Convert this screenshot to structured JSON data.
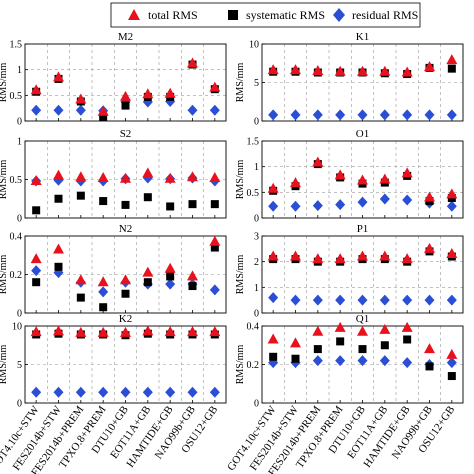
{
  "legend": {
    "items": [
      {
        "label": "total RMS",
        "marker": "triangle",
        "color": "#e8121f"
      },
      {
        "label": "systematic RMS",
        "marker": "square",
        "color": "#000000"
      },
      {
        "label": "residual RMS",
        "marker": "diamond",
        "color": "#2a4fd6"
      }
    ]
  },
  "chart_data": {
    "type": "scatter",
    "categories": [
      "GOT4.10c+STW",
      "FES2014b+STW",
      "FES2014b+PREM",
      "TPXO.8+PREM",
      "DTU10+GB",
      "EOT11A+GB",
      "HAMTIDE+GB",
      "NAO99b+GB",
      "OSU12+GB"
    ],
    "series_names": [
      "total RMS",
      "systematic RMS",
      "residual RMS"
    ],
    "ylabel": "RMS/mm",
    "panels": [
      {
        "title": "M2",
        "ylim": [
          0,
          1.5
        ],
        "yticks": [
          "0",
          "0.5",
          "1",
          "1.5"
        ],
        "total": [
          0.6,
          0.85,
          0.42,
          0.18,
          0.47,
          0.52,
          0.53,
          1.12,
          0.65
        ],
        "systematic": [
          0.57,
          0.82,
          0.38,
          0.08,
          0.3,
          0.47,
          0.47,
          1.1,
          0.62
        ],
        "residual": [
          0.21,
          0.21,
          0.21,
          0.2,
          0.37,
          0.37,
          0.38,
          0.21,
          0.21
        ]
      },
      {
        "title": "K1",
        "ylim": [
          0,
          10
        ],
        "yticks": [
          "0",
          "5",
          "10"
        ],
        "total": [
          6.6,
          6.6,
          6.5,
          6.4,
          6.4,
          6.4,
          6.3,
          7.0,
          7.9
        ],
        "systematic": [
          6.4,
          6.4,
          6.3,
          6.3,
          6.3,
          6.2,
          6.1,
          6.9,
          6.8
        ],
        "residual": [
          0.8,
          0.8,
          0.8,
          0.8,
          0.8,
          0.8,
          0.8,
          0.8,
          0.8
        ]
      },
      {
        "title": "S2",
        "ylim": [
          0,
          1
        ],
        "yticks": [
          "0",
          "0.5",
          "1"
        ],
        "total": [
          0.48,
          0.55,
          0.53,
          0.52,
          0.51,
          0.58,
          0.51,
          0.53,
          0.52
        ],
        "systematic": [
          0.1,
          0.25,
          0.29,
          0.22,
          0.17,
          0.27,
          0.15,
          0.18,
          0.18
        ],
        "residual": [
          0.48,
          0.49,
          0.48,
          0.48,
          0.51,
          0.52,
          0.51,
          0.52,
          0.48
        ]
      },
      {
        "title": "O1",
        "ylim": [
          0,
          1.5
        ],
        "yticks": [
          "0",
          "0.5",
          "1",
          "1.5"
        ],
        "total": [
          0.57,
          0.68,
          1.08,
          0.83,
          0.73,
          0.75,
          0.87,
          0.4,
          0.46
        ],
        "systematic": [
          0.53,
          0.62,
          1.05,
          0.79,
          0.67,
          0.69,
          0.82,
          0.33,
          0.39
        ],
        "residual": [
          0.23,
          0.23,
          0.24,
          0.26,
          0.31,
          0.37,
          0.35,
          0.29,
          0.23
        ]
      },
      {
        "title": "N2",
        "ylim": [
          0,
          0.4
        ],
        "yticks": [
          "0",
          "0.2",
          "0.4"
        ],
        "total": [
          0.28,
          0.33,
          0.17,
          0.16,
          0.17,
          0.21,
          0.23,
          0.19,
          0.37
        ],
        "systematic": [
          0.16,
          0.24,
          0.08,
          0.03,
          0.1,
          0.16,
          0.19,
          0.14,
          0.34
        ],
        "residual": [
          0.22,
          0.21,
          0.16,
          0.11,
          0.16,
          0.15,
          0.15,
          0.15,
          0.12
        ]
      },
      {
        "title": "P1",
        "ylim": [
          0,
          3
        ],
        "yticks": [
          "0",
          "1",
          "2",
          "3"
        ],
        "total": [
          2.2,
          2.2,
          2.1,
          2.1,
          2.2,
          2.2,
          2.1,
          2.5,
          2.3
        ],
        "systematic": [
          2.1,
          2.1,
          2.0,
          2.0,
          2.1,
          2.1,
          2.0,
          2.4,
          2.2
        ],
        "residual": [
          0.6,
          0.5,
          0.5,
          0.5,
          0.5,
          0.5,
          0.5,
          0.5,
          0.5
        ]
      },
      {
        "title": "K2",
        "ylim": [
          0,
          10
        ],
        "yticks": [
          "0",
          "5",
          "10"
        ],
        "total": [
          9.2,
          9.3,
          9.1,
          9.1,
          9.1,
          9.3,
          9.2,
          9.2,
          9.2
        ],
        "systematic": [
          8.9,
          9.0,
          8.9,
          8.9,
          8.8,
          9.0,
          8.9,
          8.9,
          8.9
        ],
        "residual": [
          1.4,
          1.4,
          1.4,
          1.4,
          1.4,
          1.4,
          1.4,
          1.4,
          1.4
        ]
      },
      {
        "title": "Q1",
        "ylim": [
          0,
          0.4
        ],
        "yticks": [
          "0",
          "0.2",
          "0.4"
        ],
        "total": [
          0.33,
          0.31,
          0.37,
          0.39,
          0.37,
          0.38,
          0.39,
          0.28,
          0.25
        ],
        "systematic": [
          0.24,
          0.23,
          0.28,
          0.32,
          0.28,
          0.3,
          0.33,
          0.19,
          0.14
        ],
        "residual": [
          0.21,
          0.21,
          0.22,
          0.22,
          0.22,
          0.22,
          0.21,
          0.2,
          0.21
        ]
      }
    ]
  }
}
